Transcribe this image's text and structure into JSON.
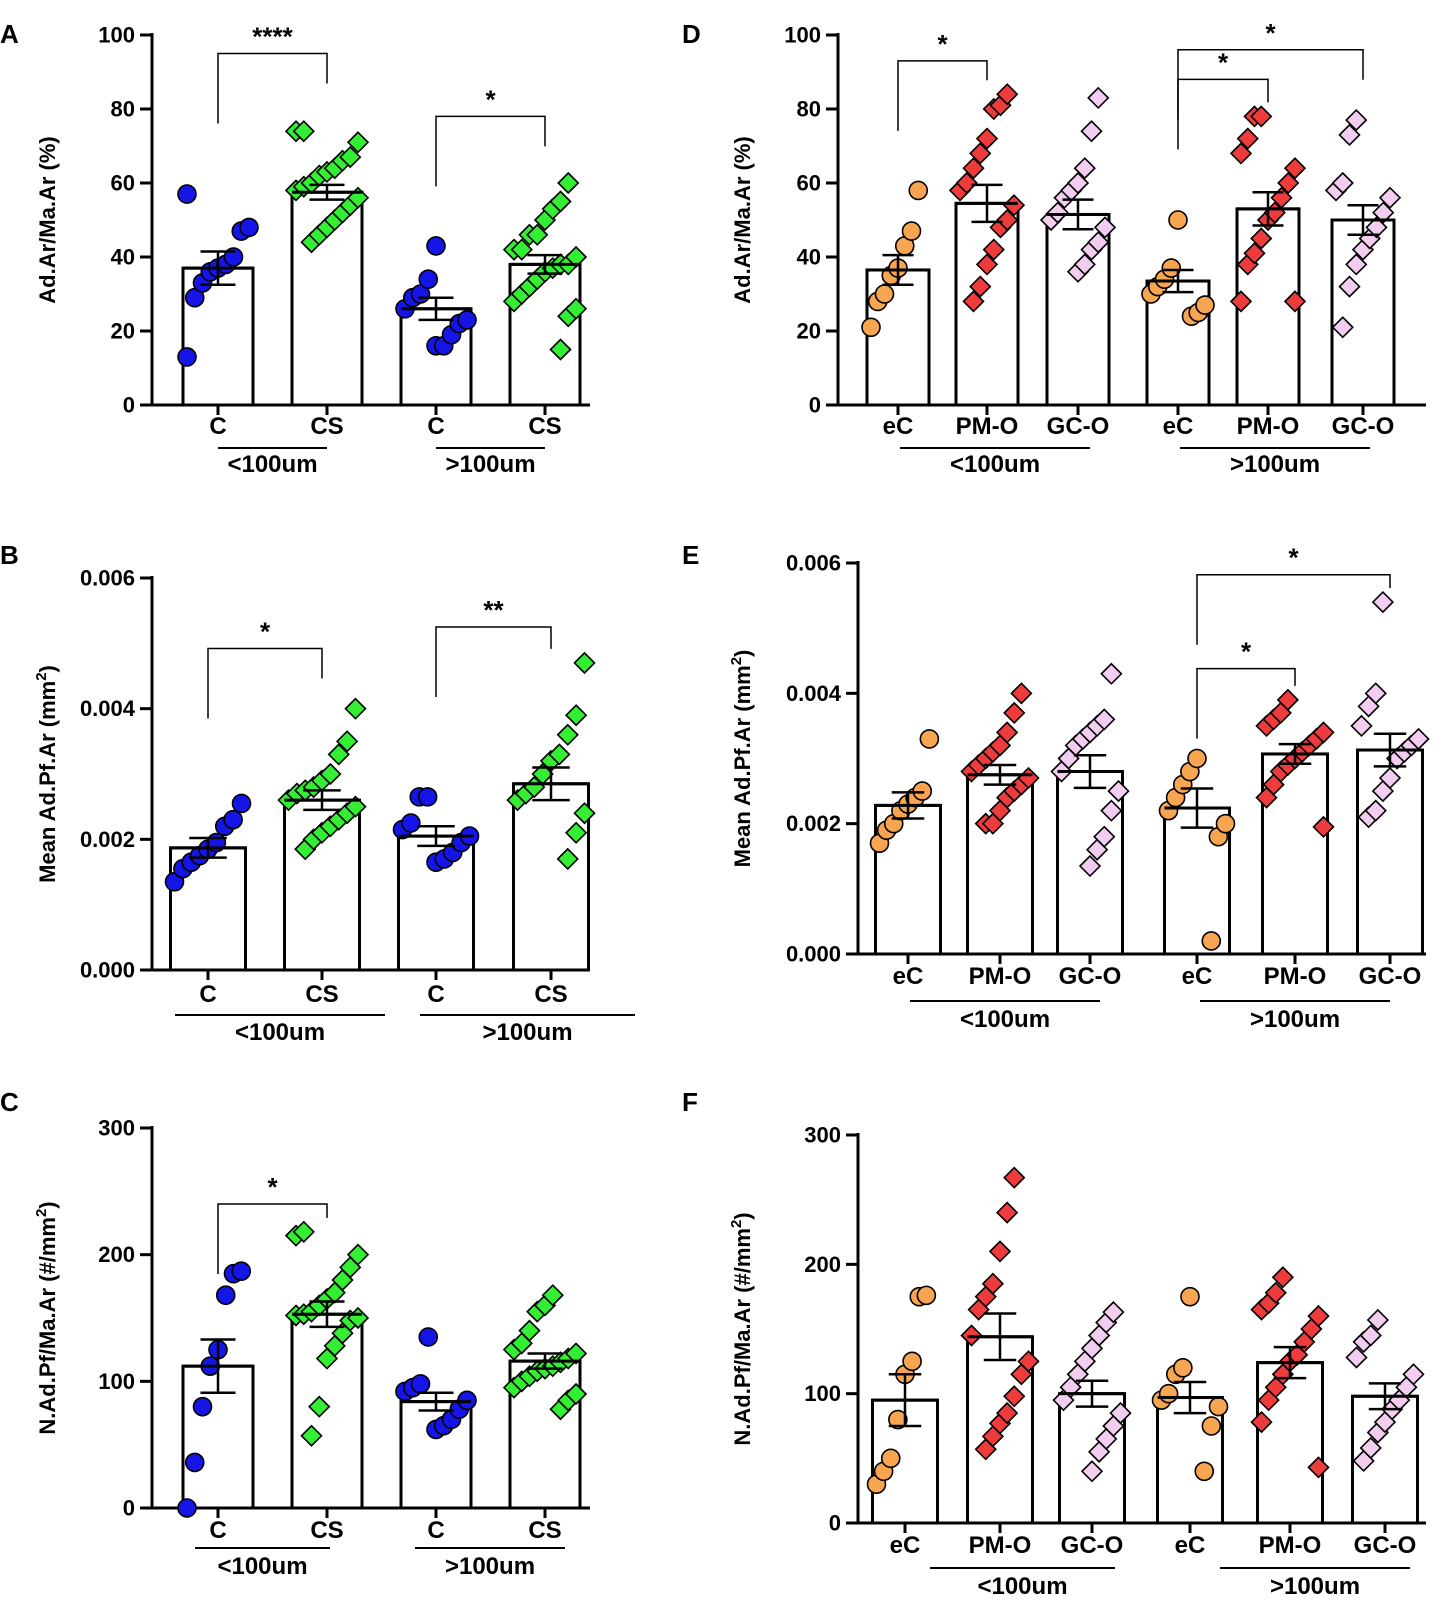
{
  "colors": {
    "blue": "#1515e8",
    "green": "#33ee33",
    "orange": "#f8a552",
    "red": "#ee3b3b",
    "pink": "#f2cdf0",
    "axis": "#000000",
    "bar_fill": "#ffffff"
  },
  "chart_data": [
    {
      "panel": "A",
      "type": "bar",
      "ylabel": "Ad.Ar/Ma.Ar (%)",
      "ylabel_sup": null,
      "ylabel_end": "",
      "ylim": [
        0,
        100
      ],
      "yticks": [
        "0",
        "20",
        "40",
        "60",
        "80",
        "100"
      ],
      "ytick_values": [
        0,
        20,
        40,
        60,
        80,
        100
      ],
      "categories": [
        "C",
        "CS",
        "C",
        "CS"
      ],
      "groups": [
        {
          "label": "<100um",
          "members": [
            0,
            1
          ]
        },
        {
          "label": ">100um",
          "members": [
            2,
            3
          ]
        }
      ],
      "series": [
        {
          "name": "C <100um",
          "color": "blue",
          "marker": "circle",
          "mean": 37,
          "sem": 4.5,
          "points": [
            13,
            29,
            33,
            36,
            37,
            38,
            40,
            47,
            48,
            57
          ]
        },
        {
          "name": "CS <100um",
          "color": "green",
          "marker": "diamond",
          "mean": 57.5,
          "sem": 2,
          "points": [
            44,
            46,
            48,
            50,
            52,
            54,
            56,
            58,
            59,
            60,
            62,
            63,
            64,
            66,
            67,
            71,
            74,
            74
          ]
        },
        {
          "name": "C >100um",
          "color": "blue",
          "marker": "circle",
          "mean": 26,
          "sem": 3,
          "points": [
            16,
            16,
            19,
            22,
            23,
            26,
            29,
            30,
            34,
            43
          ]
        },
        {
          "name": "CS >100um",
          "color": "green",
          "marker": "diamond",
          "mean": 38,
          "sem": 2.5,
          "points": [
            15,
            24,
            26,
            28,
            30,
            32,
            34,
            36,
            37,
            38,
            38,
            40,
            42,
            42,
            46,
            46,
            50,
            53,
            55,
            60
          ]
        }
      ],
      "significance": [
        {
          "from": 0,
          "to": 1,
          "label": "****",
          "y": 95
        },
        {
          "from": 2,
          "to": 3,
          "label": "*",
          "y": 78
        }
      ]
    },
    {
      "panel": "B",
      "type": "bar",
      "ylabel": "Mean Ad.Pf.Ar (mm",
      "ylabel_sup": "2",
      "ylabel_end": ")",
      "ylim": [
        0,
        0.006
      ],
      "yticks": [
        "0.000",
        "0.002",
        "0.004",
        "0.006"
      ],
      "ytick_values": [
        0,
        0.002,
        0.004,
        0.006
      ],
      "categories": [
        "C",
        "CS",
        "C",
        "CS"
      ],
      "groups": [
        {
          "label": "<100um",
          "members": [
            0,
            1
          ]
        },
        {
          "label": ">100um",
          "members": [
            2,
            3
          ]
        }
      ],
      "series": [
        {
          "name": "C <100um",
          "color": "blue",
          "marker": "circle",
          "mean": 0.00187,
          "sem": 0.00015,
          "points": [
            0.00135,
            0.00155,
            0.00165,
            0.00175,
            0.00185,
            0.00195,
            0.0022,
            0.0023,
            0.00255
          ]
        },
        {
          "name": "CS <100um",
          "color": "green",
          "marker": "diamond",
          "mean": 0.0026,
          "sem": 0.00015,
          "points": [
            0.00185,
            0.002,
            0.0021,
            0.0022,
            0.0023,
            0.0024,
            0.0025,
            0.0026,
            0.0027,
            0.00275,
            0.0028,
            0.0029,
            0.003,
            0.0033,
            0.0035,
            0.004
          ]
        },
        {
          "name": "C >100um",
          "color": "blue",
          "marker": "circle",
          "mean": 0.00205,
          "sem": 0.00015,
          "points": [
            0.00165,
            0.0017,
            0.0018,
            0.00195,
            0.00205,
            0.00215,
            0.00225,
            0.00265,
            0.00265
          ]
        },
        {
          "name": "CS >100um",
          "color": "green",
          "marker": "diamond",
          "mean": 0.00285,
          "sem": 0.00025,
          "points": [
            0.0017,
            0.0021,
            0.0024,
            0.0026,
            0.0027,
            0.0028,
            0.003,
            0.0032,
            0.0033,
            0.0036,
            0.0039,
            0.0047
          ]
        }
      ],
      "significance": [
        {
          "from": 0,
          "to": 1,
          "label": "*",
          "y": 0.00492
        },
        {
          "from": 2,
          "to": 3,
          "label": "**",
          "y": 0.00525
        }
      ]
    },
    {
      "panel": "C",
      "type": "bar",
      "ylabel": "N.Ad.Pf/Ma.Ar (#/mm",
      "ylabel_sup": "2",
      "ylabel_end": ")",
      "ylim": [
        0,
        300
      ],
      "yticks": [
        "0",
        "100",
        "200",
        "300"
      ],
      "ytick_values": [
        0,
        100,
        200,
        300
      ],
      "categories": [
        "C",
        "CS",
        "C",
        "CS"
      ],
      "groups": [
        {
          "label": "<100um",
          "members": [
            0,
            1
          ]
        },
        {
          "label": ">100um",
          "members": [
            2,
            3
          ]
        }
      ],
      "series": [
        {
          "name": "C <100um",
          "color": "blue",
          "marker": "circle",
          "mean": 112,
          "sem": 21,
          "points": [
            0,
            36,
            80,
            112,
            125,
            168,
            185,
            187
          ]
        },
        {
          "name": "CS <100um",
          "color": "green",
          "marker": "diamond",
          "mean": 153,
          "sem": 10,
          "points": [
            57,
            80,
            118,
            128,
            138,
            148,
            150,
            152,
            153,
            155,
            160,
            165,
            170,
            180,
            190,
            200,
            215,
            218
          ]
        },
        {
          "name": "C >100um",
          "color": "blue",
          "marker": "circle",
          "mean": 84,
          "sem": 7,
          "points": [
            62,
            65,
            70,
            78,
            85,
            92,
            95,
            98,
            135
          ]
        },
        {
          "name": "CS >100um",
          "color": "green",
          "marker": "diamond",
          "mean": 116,
          "sem": 6,
          "points": [
            78,
            85,
            90,
            95,
            100,
            104,
            108,
            110,
            112,
            115,
            118,
            122,
            125,
            130,
            140,
            155,
            160,
            168
          ]
        }
      ],
      "significance": [
        {
          "from": 0,
          "to": 1,
          "label": "*",
          "y": 240
        }
      ]
    },
    {
      "panel": "D",
      "type": "bar",
      "ylabel": "Ad.Ar/Ma.Ar (%)",
      "ylabel_sup": null,
      "ylabel_end": "",
      "ylim": [
        0,
        100
      ],
      "yticks": [
        "0",
        "20",
        "40",
        "60",
        "80",
        "100"
      ],
      "ytick_values": [
        0,
        20,
        40,
        60,
        80,
        100
      ],
      "categories": [
        "eC",
        "PM-O",
        "GC-O",
        "eC",
        "PM-O",
        "GC-O"
      ],
      "groups": [
        {
          "label": "<100um",
          "members": [
            0,
            1,
            2
          ]
        },
        {
          "label": ">100um",
          "members": [
            3,
            4,
            5
          ]
        }
      ],
      "series": [
        {
          "name": "eC <100um",
          "color": "orange",
          "marker": "circle",
          "mean": 36.5,
          "sem": 4,
          "points": [
            21,
            28,
            30,
            35,
            37,
            43,
            47,
            58
          ]
        },
        {
          "name": "PM-O <100um",
          "color": "red",
          "marker": "diamond",
          "mean": 54.5,
          "sem": 5,
          "points": [
            28,
            32,
            38,
            42,
            48,
            50,
            54,
            58,
            60,
            64,
            68,
            72,
            80,
            81,
            84
          ]
        },
        {
          "name": "GC-O <100um",
          "color": "pink",
          "marker": "diamond",
          "mean": 51.5,
          "sem": 4,
          "points": [
            36,
            38,
            42,
            44,
            48,
            50,
            52,
            56,
            58,
            60,
            64,
            74,
            83
          ]
        },
        {
          "name": "eC >100um",
          "color": "orange",
          "marker": "circle",
          "mean": 33.5,
          "sem": 3,
          "points": [
            24,
            25,
            27,
            30,
            32,
            34,
            37,
            50
          ]
        },
        {
          "name": "PM-O >100um",
          "color": "red",
          "marker": "diamond",
          "mean": 53,
          "sem": 4.5,
          "points": [
            28,
            28,
            38,
            41,
            45,
            50,
            52,
            56,
            60,
            64,
            68,
            72,
            78,
            78
          ]
        },
        {
          "name": "GC-O >100um",
          "color": "pink",
          "marker": "diamond",
          "mean": 50,
          "sem": 4,
          "points": [
            21,
            32,
            38,
            42,
            45,
            48,
            52,
            56,
            58,
            60,
            73,
            77
          ]
        }
      ],
      "significance": [
        {
          "from": 0,
          "to": 1,
          "label": "*",
          "y": 93
        },
        {
          "from": 3,
          "to": 4,
          "label": "*",
          "y": 88
        },
        {
          "from": 3,
          "to": 5,
          "label": "*",
          "y": 96
        }
      ]
    },
    {
      "panel": "E",
      "type": "bar",
      "ylabel": "Mean Ad.Pf.Ar (mm",
      "ylabel_sup": "2",
      "ylabel_end": ")",
      "ylim": [
        0,
        0.006
      ],
      "yticks": [
        "0.000",
        "0.002",
        "0.004",
        "0.006"
      ],
      "ytick_values": [
        0,
        0.002,
        0.004,
        0.006
      ],
      "categories": [
        "eC",
        "PM-O",
        "GC-O",
        "eC",
        "PM-O",
        "GC-O"
      ],
      "groups": [
        {
          "label": "<100um",
          "members": [
            0,
            1,
            2
          ]
        },
        {
          "label": ">100um",
          "members": [
            3,
            4,
            5
          ]
        }
      ],
      "series": [
        {
          "name": "eC <100um",
          "color": "orange",
          "marker": "circle",
          "mean": 0.00228,
          "sem": 0.0002,
          "points": [
            0.0017,
            0.0019,
            0.002,
            0.0022,
            0.0023,
            0.0024,
            0.0025,
            0.0033
          ]
        },
        {
          "name": "PM-O <100um",
          "color": "red",
          "marker": "diamond",
          "mean": 0.00275,
          "sem": 0.00015,
          "points": [
            0.002,
            0.002,
            0.0022,
            0.0024,
            0.0025,
            0.0026,
            0.0027,
            0.0028,
            0.0029,
            0.003,
            0.0031,
            0.0032,
            0.0034,
            0.0037,
            0.004
          ]
        },
        {
          "name": "GC-O <100um",
          "color": "pink",
          "marker": "diamond",
          "mean": 0.0028,
          "sem": 0.00025,
          "points": [
            0.00135,
            0.0016,
            0.0018,
            0.0022,
            0.0025,
            0.0028,
            0.003,
            0.0032,
            0.0033,
            0.0034,
            0.0035,
            0.0036,
            0.0043
          ]
        },
        {
          "name": "eC >100um",
          "color": "orange",
          "marker": "circle",
          "mean": 0.00224,
          "sem": 0.0003,
          "points": [
            0.0002,
            0.0018,
            0.002,
            0.0022,
            0.0024,
            0.0026,
            0.0028,
            0.003
          ]
        },
        {
          "name": "PM-O >100um",
          "color": "red",
          "marker": "diamond",
          "mean": 0.00307,
          "sem": 0.00015,
          "points": [
            0.00195,
            0.0024,
            0.0026,
            0.0028,
            0.0029,
            0.003,
            0.0031,
            0.0032,
            0.0033,
            0.0034,
            0.0035,
            0.0036,
            0.0037,
            0.0039
          ]
        },
        {
          "name": "GC-O >100um",
          "color": "pink",
          "marker": "diamond",
          "mean": 0.00313,
          "sem": 0.00025,
          "points": [
            0.0021,
            0.0022,
            0.0025,
            0.0027,
            0.003,
            0.0031,
            0.0032,
            0.0033,
            0.0035,
            0.0038,
            0.004,
            0.0054
          ]
        }
      ],
      "significance": [
        {
          "from": 3,
          "to": 4,
          "label": "*",
          "y": 0.00438
        },
        {
          "from": 3,
          "to": 5,
          "label": "*",
          "y": 0.00582
        }
      ]
    },
    {
      "panel": "F",
      "type": "bar",
      "ylabel": "N.Ad.Pf/Ma.Ar (#/mm",
      "ylabel_sup": "2",
      "ylabel_end": ")",
      "ylim": [
        0,
        300
      ],
      "yticks": [
        "0",
        "100",
        "200",
        "300"
      ],
      "ytick_values": [
        0,
        100,
        200,
        300
      ],
      "categories": [
        "eC",
        "PM-O",
        "GC-O",
        "eC",
        "PM-O",
        "GC-O"
      ],
      "groups": [
        {
          "label": "<100um",
          "members": [
            0,
            1,
            2
          ]
        },
        {
          "label": ">100um",
          "members": [
            3,
            4,
            5
          ]
        }
      ],
      "series": [
        {
          "name": "eC <100um",
          "color": "orange",
          "marker": "circle",
          "mean": 95,
          "sem": 20,
          "points": [
            30,
            40,
            50,
            80,
            115,
            125,
            175,
            176
          ]
        },
        {
          "name": "PM-O <100um",
          "color": "red",
          "marker": "diamond",
          "mean": 144,
          "sem": 18,
          "points": [
            57,
            67,
            77,
            85,
            98,
            115,
            125,
            145,
            165,
            175,
            185,
            210,
            240,
            267
          ]
        },
        {
          "name": "GC-O <100um",
          "color": "pink",
          "marker": "diamond",
          "mean": 100,
          "sem": 10,
          "points": [
            40,
            55,
            65,
            75,
            85,
            95,
            105,
            115,
            125,
            135,
            145,
            155,
            163
          ]
        },
        {
          "name": "eC >100um",
          "color": "orange",
          "marker": "circle",
          "mean": 97,
          "sem": 12,
          "points": [
            40,
            75,
            90,
            95,
            100,
            115,
            120,
            175
          ]
        },
        {
          "name": "PM-O >100um",
          "color": "red",
          "marker": "diamond",
          "mean": 124,
          "sem": 12,
          "points": [
            43,
            78,
            95,
            105,
            115,
            125,
            130,
            140,
            150,
            160,
            165,
            170,
            178,
            190
          ]
        },
        {
          "name": "GC-O >100um",
          "color": "pink",
          "marker": "diamond",
          "mean": 98,
          "sem": 10,
          "points": [
            48,
            58,
            70,
            78,
            88,
            95,
            105,
            115,
            128,
            140,
            145,
            157
          ]
        }
      ],
      "significance": []
    }
  ]
}
